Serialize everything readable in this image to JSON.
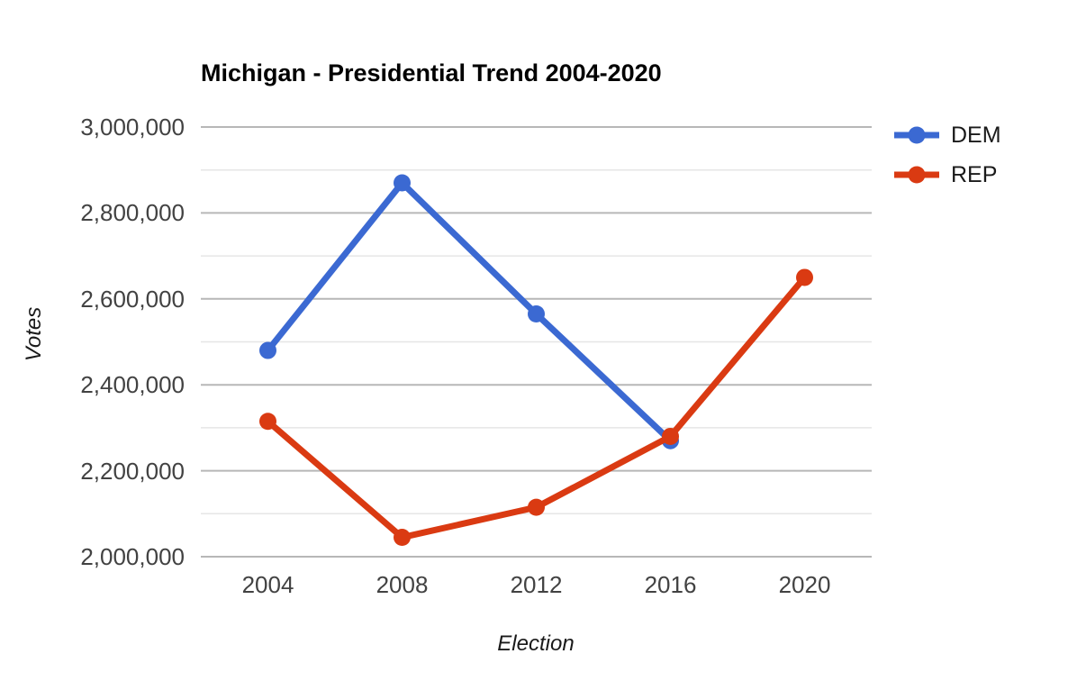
{
  "chart_data": {
    "type": "line",
    "title": "Michigan - Presidential Trend 2004-2020",
    "xlabel": "Election",
    "ylabel": "Votes",
    "categories": [
      "2004",
      "2008",
      "2012",
      "2016",
      "2020"
    ],
    "series": [
      {
        "name": "DEM",
        "color": "#3b69d2",
        "values": [
          2480000,
          2870000,
          2565000,
          2270000,
          null
        ]
      },
      {
        "name": "REP",
        "color": "#da3a12",
        "values": [
          2315000,
          2045000,
          2115000,
          2280000,
          2650000
        ]
      }
    ],
    "ylim": [
      2000000,
      3000000
    ],
    "y_major_ticks": [
      {
        "value": 2000000,
        "label": "2,000,000"
      },
      {
        "value": 2200000,
        "label": "2,200,000"
      },
      {
        "value": 2400000,
        "label": "2,400,000"
      },
      {
        "value": 2600000,
        "label": "2,600,000"
      },
      {
        "value": 2800000,
        "label": "2,800,000"
      },
      {
        "value": 3000000,
        "label": "3,000,000"
      }
    ],
    "y_minor_tick_values": [
      2100000,
      2300000,
      2500000,
      2700000,
      2900000
    ],
    "grid": "on",
    "legend_position": "top-right",
    "colors": {
      "grid_major": "#b7b7b7",
      "grid_minor": "#e6e6e6",
      "title_text": "#000000",
      "tick_text": "#424242",
      "axis_title_text": "#1a1a1a"
    },
    "marker_shape": "circle"
  }
}
